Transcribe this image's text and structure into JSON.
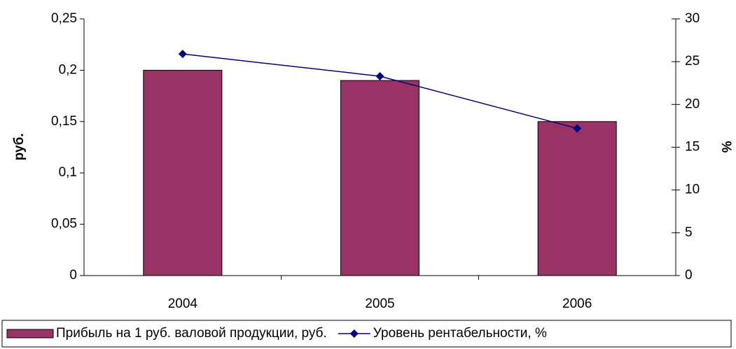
{
  "chart_data": {
    "type": "bar-line",
    "categories": [
      "2004",
      "2005",
      "2006"
    ],
    "y_label": "руб.",
    "y2_label": "%",
    "ylim": [
      0,
      0.25
    ],
    "yticks": [
      0,
      {
        "value": 0.05,
        "label": "0,05"
      },
      {
        "value": 0.1,
        "label": "0,1"
      },
      {
        "value": 0.15,
        "label": "0,15"
      },
      {
        "value": 0.2,
        "label": "0,2"
      },
      {
        "value": 0.25,
        "label": "0,25"
      }
    ],
    "y2lim": [
      0,
      30
    ],
    "y2ticks": [
      0,
      5,
      10,
      15,
      20,
      25,
      30
    ],
    "series": [
      {
        "name": "Прибыль на 1 руб. валовой продукции, руб.",
        "type": "bar",
        "color": "#993366",
        "values": [
          0.2,
          0.19,
          0.15
        ]
      },
      {
        "name": "Уровень рентабельности, %",
        "type": "line",
        "axis": "y2",
        "color": "#000080",
        "values": [
          25.9,
          23.3,
          17.2
        ]
      }
    ]
  }
}
